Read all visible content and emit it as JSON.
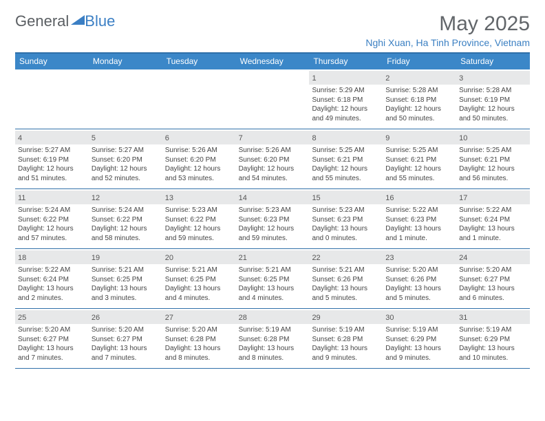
{
  "logo": {
    "text_general": "General",
    "text_blue": "Blue"
  },
  "title": "May 2025",
  "subtitle": "Nghi Xuan, Ha Tinh Province, Vietnam",
  "colors": {
    "header_bg": "#3b87c8",
    "header_text": "#ffffff",
    "border": "#2f6fa8",
    "daynum_bg": "#e7e8e9",
    "subtitle": "#3a7fc2",
    "title": "#62666a"
  },
  "day_headers": [
    "Sunday",
    "Monday",
    "Tuesday",
    "Wednesday",
    "Thursday",
    "Friday",
    "Saturday"
  ],
  "weeks": [
    [
      {
        "day": "",
        "sunrise": "",
        "sunset": "",
        "daylight": ""
      },
      {
        "day": "",
        "sunrise": "",
        "sunset": "",
        "daylight": ""
      },
      {
        "day": "",
        "sunrise": "",
        "sunset": "",
        "daylight": ""
      },
      {
        "day": "",
        "sunrise": "",
        "sunset": "",
        "daylight": ""
      },
      {
        "day": "1",
        "sunrise": "Sunrise: 5:29 AM",
        "sunset": "Sunset: 6:18 PM",
        "daylight": "Daylight: 12 hours and 49 minutes."
      },
      {
        "day": "2",
        "sunrise": "Sunrise: 5:28 AM",
        "sunset": "Sunset: 6:18 PM",
        "daylight": "Daylight: 12 hours and 50 minutes."
      },
      {
        "day": "3",
        "sunrise": "Sunrise: 5:28 AM",
        "sunset": "Sunset: 6:19 PM",
        "daylight": "Daylight: 12 hours and 50 minutes."
      }
    ],
    [
      {
        "day": "4",
        "sunrise": "Sunrise: 5:27 AM",
        "sunset": "Sunset: 6:19 PM",
        "daylight": "Daylight: 12 hours and 51 minutes."
      },
      {
        "day": "5",
        "sunrise": "Sunrise: 5:27 AM",
        "sunset": "Sunset: 6:20 PM",
        "daylight": "Daylight: 12 hours and 52 minutes."
      },
      {
        "day": "6",
        "sunrise": "Sunrise: 5:26 AM",
        "sunset": "Sunset: 6:20 PM",
        "daylight": "Daylight: 12 hours and 53 minutes."
      },
      {
        "day": "7",
        "sunrise": "Sunrise: 5:26 AM",
        "sunset": "Sunset: 6:20 PM",
        "daylight": "Daylight: 12 hours and 54 minutes."
      },
      {
        "day": "8",
        "sunrise": "Sunrise: 5:25 AM",
        "sunset": "Sunset: 6:21 PM",
        "daylight": "Daylight: 12 hours and 55 minutes."
      },
      {
        "day": "9",
        "sunrise": "Sunrise: 5:25 AM",
        "sunset": "Sunset: 6:21 PM",
        "daylight": "Daylight: 12 hours and 55 minutes."
      },
      {
        "day": "10",
        "sunrise": "Sunrise: 5:25 AM",
        "sunset": "Sunset: 6:21 PM",
        "daylight": "Daylight: 12 hours and 56 minutes."
      }
    ],
    [
      {
        "day": "11",
        "sunrise": "Sunrise: 5:24 AM",
        "sunset": "Sunset: 6:22 PM",
        "daylight": "Daylight: 12 hours and 57 minutes."
      },
      {
        "day": "12",
        "sunrise": "Sunrise: 5:24 AM",
        "sunset": "Sunset: 6:22 PM",
        "daylight": "Daylight: 12 hours and 58 minutes."
      },
      {
        "day": "13",
        "sunrise": "Sunrise: 5:23 AM",
        "sunset": "Sunset: 6:22 PM",
        "daylight": "Daylight: 12 hours and 59 minutes."
      },
      {
        "day": "14",
        "sunrise": "Sunrise: 5:23 AM",
        "sunset": "Sunset: 6:23 PM",
        "daylight": "Daylight: 12 hours and 59 minutes."
      },
      {
        "day": "15",
        "sunrise": "Sunrise: 5:23 AM",
        "sunset": "Sunset: 6:23 PM",
        "daylight": "Daylight: 13 hours and 0 minutes."
      },
      {
        "day": "16",
        "sunrise": "Sunrise: 5:22 AM",
        "sunset": "Sunset: 6:23 PM",
        "daylight": "Daylight: 13 hours and 1 minute."
      },
      {
        "day": "17",
        "sunrise": "Sunrise: 5:22 AM",
        "sunset": "Sunset: 6:24 PM",
        "daylight": "Daylight: 13 hours and 1 minute."
      }
    ],
    [
      {
        "day": "18",
        "sunrise": "Sunrise: 5:22 AM",
        "sunset": "Sunset: 6:24 PM",
        "daylight": "Daylight: 13 hours and 2 minutes."
      },
      {
        "day": "19",
        "sunrise": "Sunrise: 5:21 AM",
        "sunset": "Sunset: 6:25 PM",
        "daylight": "Daylight: 13 hours and 3 minutes."
      },
      {
        "day": "20",
        "sunrise": "Sunrise: 5:21 AM",
        "sunset": "Sunset: 6:25 PM",
        "daylight": "Daylight: 13 hours and 4 minutes."
      },
      {
        "day": "21",
        "sunrise": "Sunrise: 5:21 AM",
        "sunset": "Sunset: 6:25 PM",
        "daylight": "Daylight: 13 hours and 4 minutes."
      },
      {
        "day": "22",
        "sunrise": "Sunrise: 5:21 AM",
        "sunset": "Sunset: 6:26 PM",
        "daylight": "Daylight: 13 hours and 5 minutes."
      },
      {
        "day": "23",
        "sunrise": "Sunrise: 5:20 AM",
        "sunset": "Sunset: 6:26 PM",
        "daylight": "Daylight: 13 hours and 5 minutes."
      },
      {
        "day": "24",
        "sunrise": "Sunrise: 5:20 AM",
        "sunset": "Sunset: 6:27 PM",
        "daylight": "Daylight: 13 hours and 6 minutes."
      }
    ],
    [
      {
        "day": "25",
        "sunrise": "Sunrise: 5:20 AM",
        "sunset": "Sunset: 6:27 PM",
        "daylight": "Daylight: 13 hours and 7 minutes."
      },
      {
        "day": "26",
        "sunrise": "Sunrise: 5:20 AM",
        "sunset": "Sunset: 6:27 PM",
        "daylight": "Daylight: 13 hours and 7 minutes."
      },
      {
        "day": "27",
        "sunrise": "Sunrise: 5:20 AM",
        "sunset": "Sunset: 6:28 PM",
        "daylight": "Daylight: 13 hours and 8 minutes."
      },
      {
        "day": "28",
        "sunrise": "Sunrise: 5:19 AM",
        "sunset": "Sunset: 6:28 PM",
        "daylight": "Daylight: 13 hours and 8 minutes."
      },
      {
        "day": "29",
        "sunrise": "Sunrise: 5:19 AM",
        "sunset": "Sunset: 6:28 PM",
        "daylight": "Daylight: 13 hours and 9 minutes."
      },
      {
        "day": "30",
        "sunrise": "Sunrise: 5:19 AM",
        "sunset": "Sunset: 6:29 PM",
        "daylight": "Daylight: 13 hours and 9 minutes."
      },
      {
        "day": "31",
        "sunrise": "Sunrise: 5:19 AM",
        "sunset": "Sunset: 6:29 PM",
        "daylight": "Daylight: 13 hours and 10 minutes."
      }
    ]
  ]
}
